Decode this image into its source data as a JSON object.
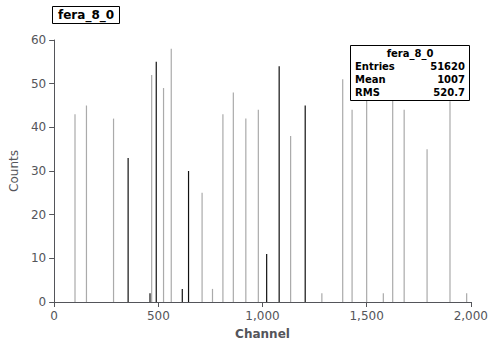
{
  "chart_data": {
    "type": "vlines",
    "title": "fera_8_0",
    "xlabel": "Channel",
    "ylabel": "Counts",
    "xlim": [
      0,
      2000
    ],
    "ylim": [
      0,
      60
    ],
    "xticks": [
      0,
      500,
      1000,
      1500,
      2000
    ],
    "yticks": [
      0,
      10,
      20,
      30,
      40,
      50,
      60
    ],
    "grid": false,
    "x": [
      100,
      155,
      285,
      355,
      460,
      468,
      490,
      525,
      562,
      615,
      645,
      710,
      760,
      810,
      860,
      920,
      980,
      1020,
      1080,
      1135,
      1205,
      1285,
      1385,
      1430,
      1500,
      1580,
      1625,
      1680,
      1790,
      1900,
      1980
    ],
    "values": [
      43,
      45,
      42,
      33,
      2,
      52,
      55,
      49,
      58,
      3,
      30,
      25,
      3,
      43,
      48,
      42,
      44,
      11,
      54,
      38,
      45,
      2,
      51,
      44,
      52,
      2,
      49,
      44,
      35,
      46,
      2
    ],
    "colors": [
      "#aaaaaa",
      "#aaaaaa",
      "#aaaaaa",
      "#111111",
      "#111111",
      "#aaaaaa",
      "#111111",
      "#aaaaaa",
      "#aaaaaa",
      "#111111",
      "#111111",
      "#aaaaaa",
      "#aaaaaa",
      "#aaaaaa",
      "#aaaaaa",
      "#aaaaaa",
      "#aaaaaa",
      "#111111",
      "#111111",
      "#aaaaaa",
      "#111111",
      "#aaaaaa",
      "#aaaaaa",
      "#aaaaaa",
      "#aaaaaa",
      "#aaaaaa",
      "#aaaaaa",
      "#aaaaaa",
      "#aaaaaa",
      "#aaaaaa",
      "#aaaaaa"
    ],
    "annotations": [
      {
        "label": "Entries",
        "value": 51620
      },
      {
        "label": "Mean",
        "value": 1007
      },
      {
        "label": "RMS",
        "value": 520.7
      }
    ]
  }
}
